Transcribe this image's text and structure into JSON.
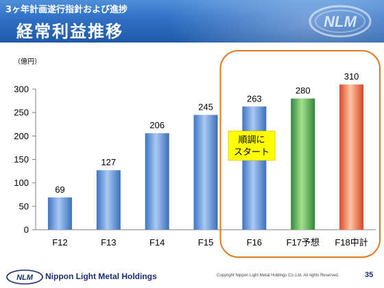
{
  "header": {
    "subtitle": "3ヶ年計画遂行指針および進捗",
    "title": "経常利益推移",
    "logo_text": "NLM"
  },
  "chart_data": {
    "type": "bar",
    "title": "経常利益推移",
    "unit_label": "（億円）",
    "categories": [
      "F12",
      "F13",
      "F14",
      "F15",
      "F16",
      "F17予想",
      "F18中計"
    ],
    "values": [
      69,
      127,
      206,
      245,
      263,
      280,
      310
    ],
    "value_labels": [
      "69",
      "127",
      "206",
      "245",
      "263",
      "280",
      "310"
    ],
    "bar_styles": [
      "blue",
      "blue",
      "blue",
      "blue",
      "blue",
      "green",
      "orange"
    ],
    "ylim": [
      0,
      300
    ],
    "yticks": [
      0,
      50,
      100,
      150,
      200,
      250,
      300
    ],
    "ytick_labels": [
      "0",
      "50",
      "100",
      "150",
      "200",
      "250",
      "300"
    ],
    "grid": false,
    "legend": "none",
    "annotation": {
      "text_lines": [
        "順調に",
        "スタート"
      ],
      "background": "#ffff00"
    },
    "highlight_group": {
      "categories": [
        "F16",
        "F17予想",
        "F18中計"
      ],
      "border_color": "#e07820"
    },
    "colors": {
      "blue": "#5b8fd6",
      "green": "#3fa04a",
      "orange": "#e6603a"
    }
  },
  "footer": {
    "company": "Nippon Light Metal Holdings",
    "copyright": "Copyright Nippon Light Metal Holdings Co.,Ltd. All rights Reserved.",
    "page_number": "35"
  }
}
